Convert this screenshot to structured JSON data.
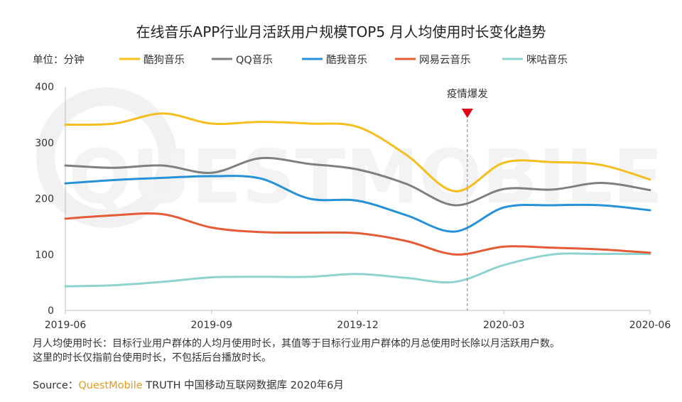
{
  "chart_data": {
    "type": "line",
    "title": "在线音乐APP行业月活跃用户规模TOP5 月人均使用时长变化趋势",
    "unit_label": "单位：分钟",
    "ylim": [
      0,
      400
    ],
    "yticks": [
      0,
      100,
      200,
      300,
      400
    ],
    "xlim": [
      0,
      12
    ],
    "x": [
      0,
      1,
      2,
      3,
      4,
      5,
      6,
      7,
      8,
      9,
      10,
      11,
      12
    ],
    "x_months": [
      "2019-06",
      "2019-07",
      "2019-08",
      "2019-09",
      "2019-10",
      "2019-11",
      "2019-12",
      "2020-01",
      "2020-02",
      "2020-03",
      "2020-04",
      "2020-05",
      "2020-06"
    ],
    "xtick_positions": [
      0,
      3,
      6,
      9,
      12
    ],
    "xtick_labels": [
      "2019-06",
      "2019-09",
      "2019-12",
      "2020-03",
      "2020-06"
    ],
    "series": [
      {
        "name": "酷狗音乐",
        "color": "#F5BE1E",
        "values": [
          332,
          334,
          352,
          334,
          337,
          334,
          328,
          278,
          213,
          264,
          265,
          260,
          234
        ]
      },
      {
        "name": "QQ音乐",
        "color": "#7F7F7F",
        "values": [
          259,
          255,
          259,
          246,
          272,
          262,
          252,
          226,
          188,
          217,
          216,
          228,
          215
        ]
      },
      {
        "name": "酷我音乐",
        "color": "#2592D8",
        "values": [
          227,
          233,
          237,
          240,
          236,
          200,
          196,
          170,
          141,
          184,
          188,
          188,
          179
        ]
      },
      {
        "name": "网易云音乐",
        "color": "#E35C36",
        "values": [
          164,
          170,
          172,
          148,
          140,
          139,
          138,
          124,
          100,
          114,
          112,
          109,
          103
        ]
      },
      {
        "name": "咪咕音乐",
        "color": "#8FD3D1",
        "values": [
          43,
          45,
          51,
          59,
          60,
          60,
          65,
          58,
          51,
          81,
          100,
          101,
          101
        ]
      }
    ],
    "annotation": {
      "label": "疫情爆发",
      "x": 8.25
    }
  },
  "watermark": "QUESTMOBILE",
  "notes": {
    "line1": "月人均使用时长：目标行业用户群体的人均月使用时长，其值等于目标行业用户群体的月总使用时长除以月活跃用户数。",
    "line2": "这里的时长仅指前台使用时长，不包括后台播放时长。"
  },
  "source": {
    "label": "Source：",
    "brand": "QuestMobile",
    "rest": " TRUTH 中国移动互联网数据库 2020年6月"
  }
}
